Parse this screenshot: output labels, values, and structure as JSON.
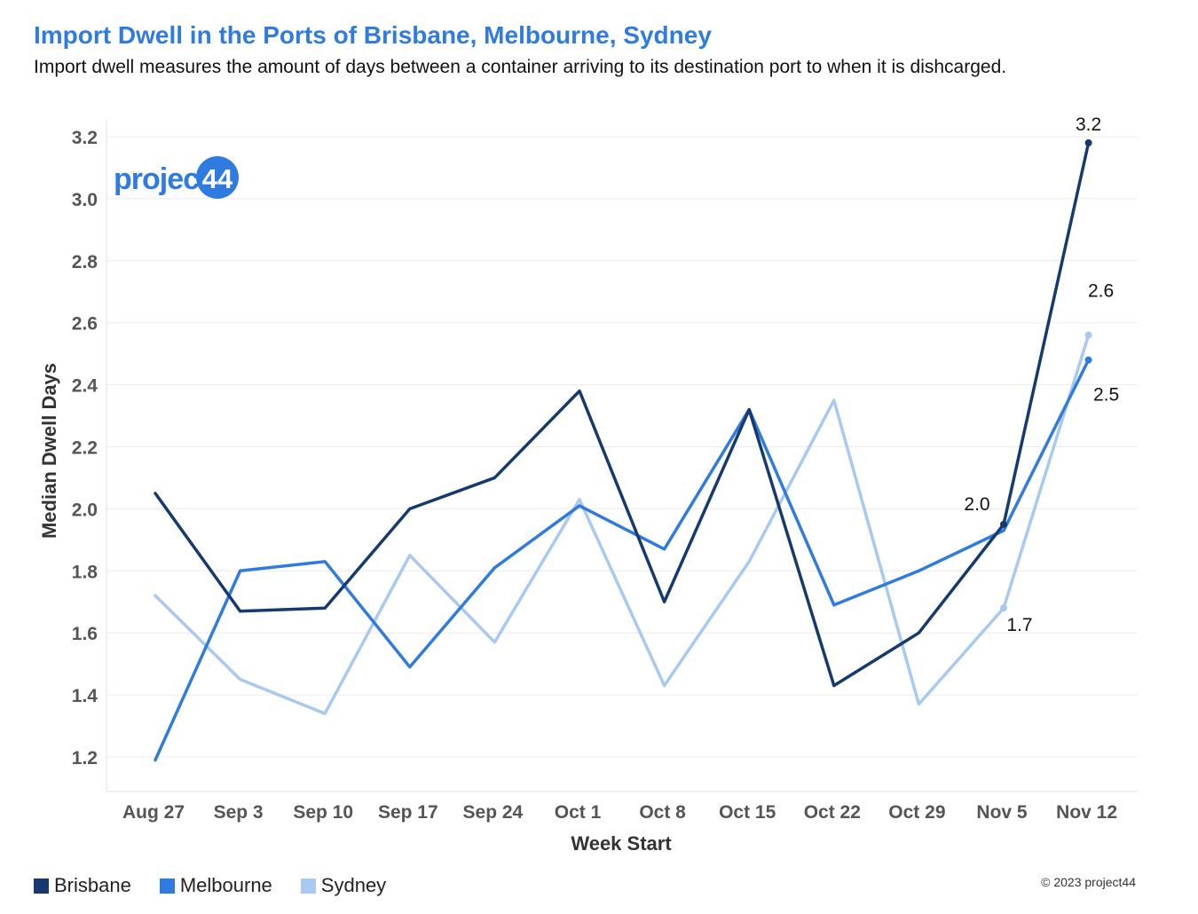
{
  "title": "Import Dwell in the Ports of Brisbane, Melbourne, Sydney",
  "subtitle": "Import dwell measures the amount of days between a container arriving to its destination port to when it is dishcarged.",
  "logo_text": "project44",
  "copyright": "© 2023 project44",
  "chart_data": {
    "type": "line",
    "title": "Import Dwell in the Ports of Brisbane, Melbourne, Sydney",
    "xlabel": "Week Start",
    "ylabel": "Median Dwell Days",
    "categories": [
      "Aug 27",
      "Sep 3",
      "Sep 10",
      "Sep 17",
      "Sep 24",
      "Oct 1",
      "Oct 8",
      "Oct 15",
      "Oct 22",
      "Oct 29",
      "Nov 5",
      "Nov 12"
    ],
    "ylim": [
      1.1,
      3.3
    ],
    "yticks": [
      1.2,
      1.4,
      1.6,
      1.8,
      2.0,
      2.2,
      2.4,
      2.6,
      2.8,
      3.0,
      3.2
    ],
    "ytick_labels": [
      "1.2",
      "1.4",
      "1.6",
      "1.8",
      "2.0",
      "2.2",
      "2.4",
      "2.6",
      "2.8",
      "3.0",
      "3.2"
    ],
    "grid": true,
    "legend_position": "bottom-left",
    "series": [
      {
        "name": "Brisbane",
        "color": "#173a6e",
        "values": [
          2.05,
          1.67,
          1.68,
          2.0,
          2.1,
          2.38,
          1.7,
          2.32,
          1.43,
          1.6,
          1.95,
          3.18
        ]
      },
      {
        "name": "Melbourne",
        "color": "#2f7be0",
        "values": [
          1.19,
          1.8,
          1.83,
          1.49,
          1.81,
          2.01,
          1.87,
          2.32,
          1.69,
          1.8,
          1.93,
          2.48
        ]
      },
      {
        "name": "Sydney",
        "color": "#a8c9f0",
        "values": [
          1.72,
          1.45,
          1.34,
          1.85,
          1.57,
          2.03,
          1.43,
          1.83,
          2.35,
          1.37,
          1.68,
          2.56
        ]
      }
    ],
    "annotations": [
      {
        "series": "Brisbane",
        "category": "Nov 5",
        "text": "2.0"
      },
      {
        "series": "Brisbane",
        "category": "Nov 12",
        "text": "3.2"
      },
      {
        "series": "Sydney",
        "category": "Nov 5",
        "text": "1.7"
      },
      {
        "series": "Sydney",
        "category": "Nov 12",
        "text": "2.6"
      },
      {
        "series": "Melbourne",
        "category": "Nov 12",
        "text": "2.5"
      }
    ]
  }
}
